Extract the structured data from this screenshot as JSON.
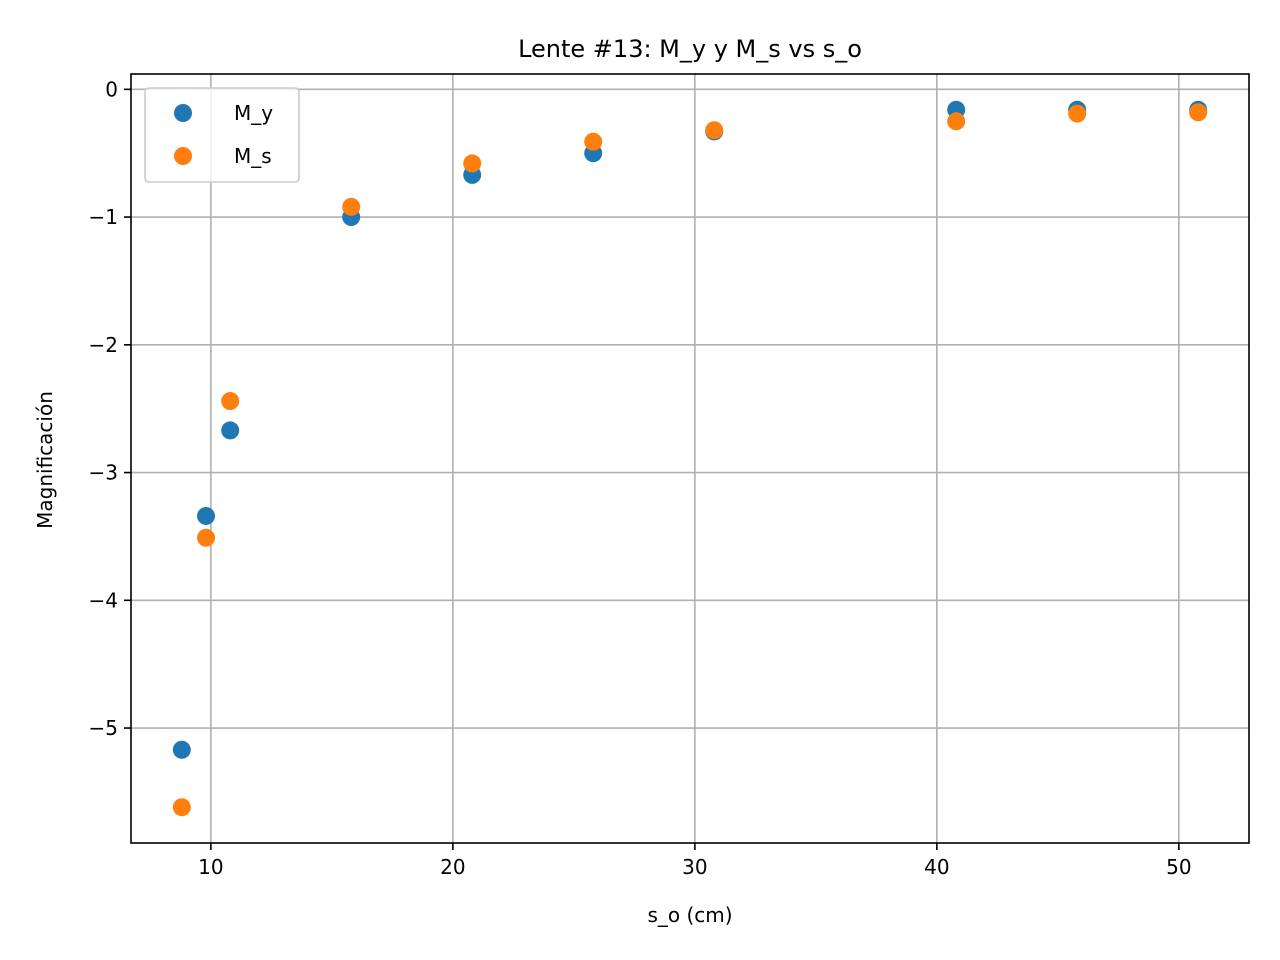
{
  "chart_data": {
    "type": "scatter",
    "title": "Lente #13: M_y y M_s vs s_o",
    "xlabel": "s_o (cm)",
    "ylabel": "Magnificación",
    "xlim": [
      6.7,
      52.9
    ],
    "ylim": [
      -5.9,
      0.12
    ],
    "xticks": [
      10,
      20,
      30,
      40,
      50
    ],
    "yticks": [
      0,
      -1,
      -2,
      -3,
      -4,
      -5
    ],
    "xtick_labels": [
      "10",
      "20",
      "30",
      "40",
      "50"
    ],
    "ytick_labels": [
      "0",
      "−1",
      "−2",
      "−3",
      "−4",
      "−5"
    ],
    "grid": true,
    "legend_position": "upper-left",
    "series": [
      {
        "name": "M_y",
        "color": "#1f77b4",
        "x": [
          8.8,
          9.8,
          10.8,
          15.8,
          20.8,
          25.8,
          30.8,
          40.8,
          45.8,
          50.8
        ],
        "y": [
          -5.17,
          -3.34,
          -2.67,
          -1.0,
          -0.67,
          -0.5,
          -0.33,
          -0.16,
          -0.16,
          -0.16
        ]
      },
      {
        "name": "M_s",
        "color": "#ff7f0e",
        "x": [
          8.8,
          9.8,
          10.8,
          15.8,
          20.8,
          25.8,
          30.8,
          40.8,
          45.8,
          50.8
        ],
        "y": [
          -5.62,
          -3.51,
          -2.44,
          -0.92,
          -0.58,
          -0.41,
          -0.32,
          -0.25,
          -0.19,
          -0.18
        ]
      }
    ]
  }
}
